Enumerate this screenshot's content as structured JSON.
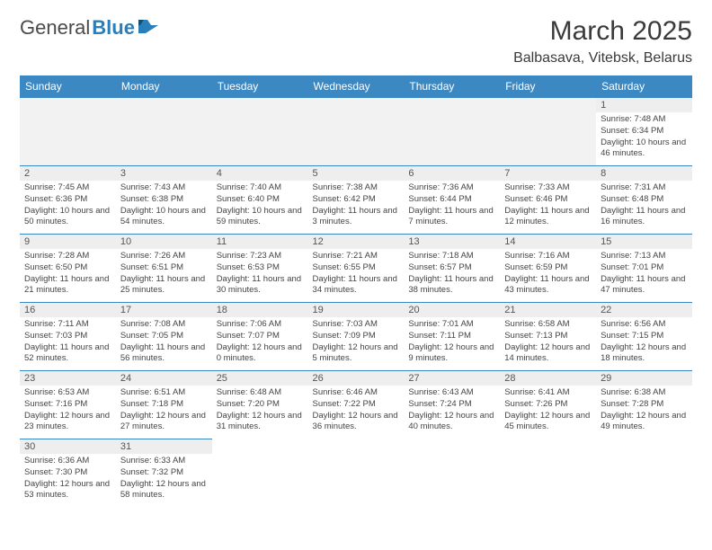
{
  "logo": {
    "text1": "General",
    "text2": "Blue"
  },
  "title": "March 2025",
  "location": "Balbasava, Vitebsk, Belarus",
  "colors": {
    "header_bg": "#3b88c3",
    "header_text": "#ffffff",
    "cell_border": "#3b88c3",
    "daynum_bg": "#eeeeee",
    "empty_bg": "#f2f2f2",
    "body_text": "#444444"
  },
  "day_headers": [
    "Sunday",
    "Monday",
    "Tuesday",
    "Wednesday",
    "Thursday",
    "Friday",
    "Saturday"
  ],
  "weeks": [
    [
      null,
      null,
      null,
      null,
      null,
      null,
      {
        "n": "1",
        "sr": "7:48 AM",
        "ss": "6:34 PM",
        "dl": "10 hours and 46 minutes."
      }
    ],
    [
      {
        "n": "2",
        "sr": "7:45 AM",
        "ss": "6:36 PM",
        "dl": "10 hours and 50 minutes."
      },
      {
        "n": "3",
        "sr": "7:43 AM",
        "ss": "6:38 PM",
        "dl": "10 hours and 54 minutes."
      },
      {
        "n": "4",
        "sr": "7:40 AM",
        "ss": "6:40 PM",
        "dl": "10 hours and 59 minutes."
      },
      {
        "n": "5",
        "sr": "7:38 AM",
        "ss": "6:42 PM",
        "dl": "11 hours and 3 minutes."
      },
      {
        "n": "6",
        "sr": "7:36 AM",
        "ss": "6:44 PM",
        "dl": "11 hours and 7 minutes."
      },
      {
        "n": "7",
        "sr": "7:33 AM",
        "ss": "6:46 PM",
        "dl": "11 hours and 12 minutes."
      },
      {
        "n": "8",
        "sr": "7:31 AM",
        "ss": "6:48 PM",
        "dl": "11 hours and 16 minutes."
      }
    ],
    [
      {
        "n": "9",
        "sr": "7:28 AM",
        "ss": "6:50 PM",
        "dl": "11 hours and 21 minutes."
      },
      {
        "n": "10",
        "sr": "7:26 AM",
        "ss": "6:51 PM",
        "dl": "11 hours and 25 minutes."
      },
      {
        "n": "11",
        "sr": "7:23 AM",
        "ss": "6:53 PM",
        "dl": "11 hours and 30 minutes."
      },
      {
        "n": "12",
        "sr": "7:21 AM",
        "ss": "6:55 PM",
        "dl": "11 hours and 34 minutes."
      },
      {
        "n": "13",
        "sr": "7:18 AM",
        "ss": "6:57 PM",
        "dl": "11 hours and 38 minutes."
      },
      {
        "n": "14",
        "sr": "7:16 AM",
        "ss": "6:59 PM",
        "dl": "11 hours and 43 minutes."
      },
      {
        "n": "15",
        "sr": "7:13 AM",
        "ss": "7:01 PM",
        "dl": "11 hours and 47 minutes."
      }
    ],
    [
      {
        "n": "16",
        "sr": "7:11 AM",
        "ss": "7:03 PM",
        "dl": "11 hours and 52 minutes."
      },
      {
        "n": "17",
        "sr": "7:08 AM",
        "ss": "7:05 PM",
        "dl": "11 hours and 56 minutes."
      },
      {
        "n": "18",
        "sr": "7:06 AM",
        "ss": "7:07 PM",
        "dl": "12 hours and 0 minutes."
      },
      {
        "n": "19",
        "sr": "7:03 AM",
        "ss": "7:09 PM",
        "dl": "12 hours and 5 minutes."
      },
      {
        "n": "20",
        "sr": "7:01 AM",
        "ss": "7:11 PM",
        "dl": "12 hours and 9 minutes."
      },
      {
        "n": "21",
        "sr": "6:58 AM",
        "ss": "7:13 PM",
        "dl": "12 hours and 14 minutes."
      },
      {
        "n": "22",
        "sr": "6:56 AM",
        "ss": "7:15 PM",
        "dl": "12 hours and 18 minutes."
      }
    ],
    [
      {
        "n": "23",
        "sr": "6:53 AM",
        "ss": "7:16 PM",
        "dl": "12 hours and 23 minutes."
      },
      {
        "n": "24",
        "sr": "6:51 AM",
        "ss": "7:18 PM",
        "dl": "12 hours and 27 minutes."
      },
      {
        "n": "25",
        "sr": "6:48 AM",
        "ss": "7:20 PM",
        "dl": "12 hours and 31 minutes."
      },
      {
        "n": "26",
        "sr": "6:46 AM",
        "ss": "7:22 PM",
        "dl": "12 hours and 36 minutes."
      },
      {
        "n": "27",
        "sr": "6:43 AM",
        "ss": "7:24 PM",
        "dl": "12 hours and 40 minutes."
      },
      {
        "n": "28",
        "sr": "6:41 AM",
        "ss": "7:26 PM",
        "dl": "12 hours and 45 minutes."
      },
      {
        "n": "29",
        "sr": "6:38 AM",
        "ss": "7:28 PM",
        "dl": "12 hours and 49 minutes."
      }
    ],
    [
      {
        "n": "30",
        "sr": "6:36 AM",
        "ss": "7:30 PM",
        "dl": "12 hours and 53 minutes."
      },
      {
        "n": "31",
        "sr": "6:33 AM",
        "ss": "7:32 PM",
        "dl": "12 hours and 58 minutes."
      },
      null,
      null,
      null,
      null,
      null
    ]
  ],
  "labels": {
    "sunrise": "Sunrise: ",
    "sunset": "Sunset: ",
    "daylight": "Daylight: "
  }
}
